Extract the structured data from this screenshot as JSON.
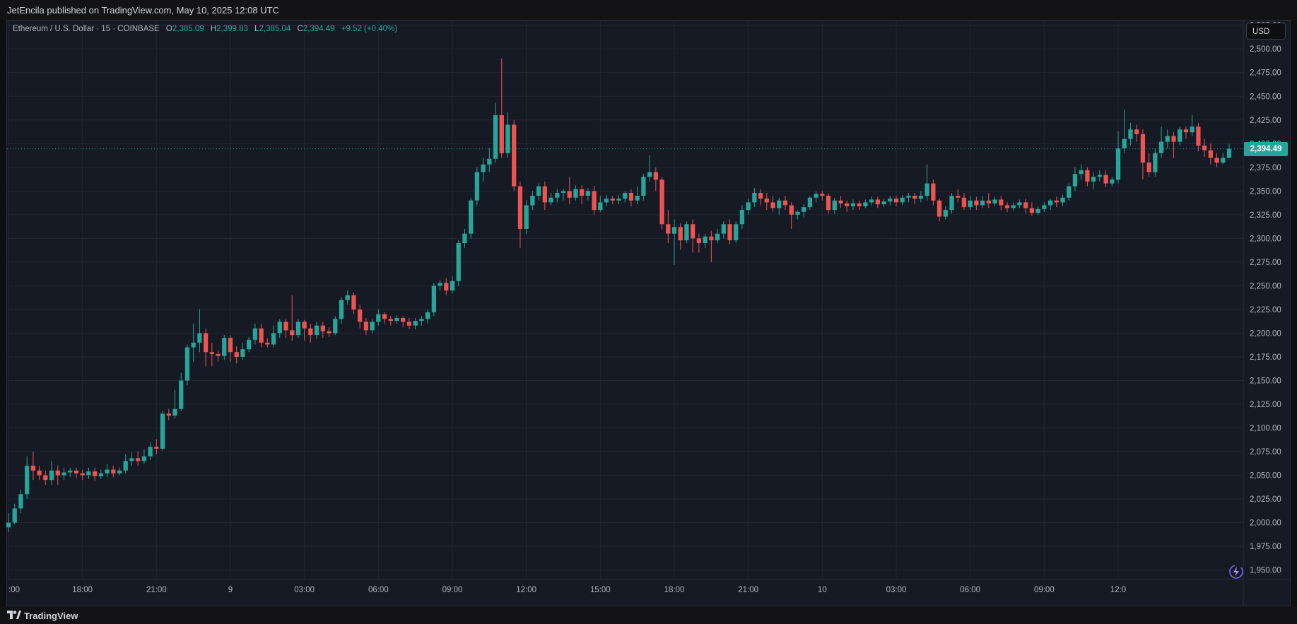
{
  "header": {
    "published_text": "JetEncila published on TradingView.com, May 10, 2025 12:08 UTC"
  },
  "legend": {
    "symbol": "Ethereum / U.S. Dollar · 15 · COINBASE",
    "open_label": "O",
    "open": "2,385.09",
    "high_label": "H",
    "high": "2,399.83",
    "low_label": "L",
    "low": "2,385.04",
    "close_label": "C",
    "close": "2,394.49",
    "change": "+9.52 (+0.40%)"
  },
  "axis": {
    "currency": "USD",
    "last_price_label": "2,394.49",
    "y_ticks": [
      "2,525.00",
      "2,500.00",
      "2,475.00",
      "2,450.00",
      "2,425.00",
      "2,400.00",
      "2,375.00",
      "2,350.00",
      "2,325.00",
      "2,300.00",
      "2,275.00",
      "2,250.00",
      "2,225.00",
      "2,200.00",
      "2,175.00",
      "2,150.00",
      "2,125.00",
      "2,100.00",
      "2,075.00",
      "2,050.00",
      "2,025.00",
      "2,000.00",
      "1,975.00",
      "1,950.00"
    ],
    "x_ticks": [
      ":00",
      "18:00",
      "21:00",
      "9",
      "03:00",
      "06:00",
      "09:00",
      "12:00",
      "15:00",
      "18:00",
      "21:00",
      "10",
      "03:00",
      "06:00",
      "09:00",
      "12:0"
    ]
  },
  "footer": {
    "brand": "TradingView"
  },
  "colors": {
    "up": "#26a69a",
    "down": "#ef5350",
    "background": "#161a25",
    "grid": "#232733"
  },
  "icons": {
    "logo": "tradingview-logo-icon",
    "flash": "lightning-flash-icon"
  },
  "chart_data": {
    "type": "candlestick",
    "symbol": "ETHUSD",
    "interval_minutes": 15,
    "ylim": [
      1940,
      2530
    ],
    "last_price": 2394.49,
    "candles": [
      [
        1995,
        2000,
        1990,
        2010
      ],
      [
        2000,
        2015,
        1998,
        2020
      ],
      [
        2015,
        2030,
        2010,
        2035
      ],
      [
        2030,
        2060,
        2025,
        2070
      ],
      [
        2060,
        2055,
        2045,
        2075
      ],
      [
        2055,
        2050,
        2045,
        2060
      ],
      [
        2050,
        2045,
        2040,
        2055
      ],
      [
        2045,
        2055,
        2040,
        2065
      ],
      [
        2055,
        2050,
        2040,
        2060
      ],
      [
        2050,
        2053,
        2045,
        2058
      ],
      [
        2053,
        2055,
        2048,
        2058
      ],
      [
        2055,
        2052,
        2047,
        2058
      ],
      [
        2052,
        2050,
        2045,
        2056
      ],
      [
        2050,
        2054,
        2046,
        2058
      ],
      [
        2054,
        2049,
        2044,
        2058
      ],
      [
        2049,
        2052,
        2046,
        2056
      ],
      [
        2052,
        2056,
        2048,
        2062
      ],
      [
        2056,
        2052,
        2048,
        2060
      ],
      [
        2052,
        2055,
        2050,
        2058
      ],
      [
        2055,
        2065,
        2052,
        2072
      ],
      [
        2065,
        2068,
        2060,
        2074
      ],
      [
        2068,
        2065,
        2060,
        2075
      ],
      [
        2065,
        2070,
        2062,
        2078
      ],
      [
        2070,
        2080,
        2066,
        2085
      ],
      [
        2080,
        2078,
        2072,
        2088
      ],
      [
        2078,
        2115,
        2076,
        2118
      ],
      [
        2115,
        2113,
        2108,
        2120
      ],
      [
        2113,
        2120,
        2110,
        2140
      ],
      [
        2120,
        2150,
        2118,
        2158
      ],
      [
        2150,
        2185,
        2145,
        2188
      ],
      [
        2185,
        2190,
        2170,
        2210
      ],
      [
        2190,
        2200,
        2180,
        2225
      ],
      [
        2200,
        2180,
        2165,
        2205
      ],
      [
        2180,
        2178,
        2165,
        2190
      ],
      [
        2178,
        2176,
        2170,
        2182
      ],
      [
        2176,
        2195,
        2172,
        2198
      ],
      [
        2195,
        2180,
        2170,
        2198
      ],
      [
        2180,
        2175,
        2168,
        2186
      ],
      [
        2175,
        2183,
        2172,
        2190
      ],
      [
        2183,
        2193,
        2180,
        2196
      ],
      [
        2193,
        2205,
        2188,
        2210
      ],
      [
        2205,
        2190,
        2185,
        2210
      ],
      [
        2190,
        2188,
        2185,
        2195
      ],
      [
        2188,
        2200,
        2185,
        2208
      ],
      [
        2200,
        2212,
        2195,
        2215
      ],
      [
        2212,
        2203,
        2195,
        2215
      ],
      [
        2203,
        2198,
        2192,
        2240
      ],
      [
        2198,
        2212,
        2195,
        2215
      ],
      [
        2212,
        2205,
        2192,
        2214
      ],
      [
        2205,
        2198,
        2190,
        2210
      ],
      [
        2198,
        2208,
        2194,
        2212
      ],
      [
        2208,
        2202,
        2195,
        2212
      ],
      [
        2202,
        2200,
        2196,
        2206
      ],
      [
        2200,
        2215,
        2198,
        2218
      ],
      [
        2215,
        2235,
        2210,
        2238
      ],
      [
        2235,
        2240,
        2230,
        2245
      ],
      [
        2240,
        2225,
        2220,
        2243
      ],
      [
        2225,
        2212,
        2205,
        2230
      ],
      [
        2212,
        2203,
        2198,
        2216
      ],
      [
        2203,
        2212,
        2200,
        2215
      ],
      [
        2212,
        2220,
        2208,
        2225
      ],
      [
        2220,
        2215,
        2210,
        2222
      ],
      [
        2215,
        2213,
        2208,
        2218
      ],
      [
        2213,
        2216,
        2210,
        2219
      ],
      [
        2216,
        2212,
        2206,
        2218
      ],
      [
        2212,
        2208,
        2204,
        2216
      ],
      [
        2208,
        2213,
        2204,
        2216
      ],
      [
        2213,
        2215,
        2208,
        2218
      ],
      [
        2215,
        2222,
        2210,
        2225
      ],
      [
        2222,
        2250,
        2218,
        2253
      ],
      [
        2250,
        2253,
        2245,
        2256
      ],
      [
        2253,
        2245,
        2240,
        2258
      ],
      [
        2245,
        2255,
        2242,
        2260
      ],
      [
        2255,
        2295,
        2250,
        2298
      ],
      [
        2295,
        2305,
        2290,
        2310
      ],
      [
        2305,
        2340,
        2300,
        2343
      ],
      [
        2340,
        2370,
        2335,
        2375
      ],
      [
        2370,
        2378,
        2360,
        2385
      ],
      [
        2378,
        2384,
        2370,
        2395
      ],
      [
        2384,
        2430,
        2380,
        2443
      ],
      [
        2430,
        2390,
        2385,
        2490
      ],
      [
        2390,
        2420,
        2385,
        2433
      ],
      [
        2420,
        2355,
        2350,
        2425
      ],
      [
        2355,
        2310,
        2290,
        2360
      ],
      [
        2310,
        2335,
        2305,
        2340
      ],
      [
        2335,
        2345,
        2330,
        2350
      ],
      [
        2345,
        2355,
        2340,
        2358
      ],
      [
        2355,
        2338,
        2330,
        2360
      ],
      [
        2338,
        2343,
        2335,
        2348
      ],
      [
        2343,
        2348,
        2338,
        2352
      ],
      [
        2348,
        2350,
        2340,
        2352
      ],
      [
        2350,
        2343,
        2336,
        2365
      ],
      [
        2343,
        2352,
        2340,
        2356
      ],
      [
        2352,
        2345,
        2336,
        2356
      ],
      [
        2345,
        2350,
        2340,
        2353
      ],
      [
        2350,
        2330,
        2325,
        2355
      ],
      [
        2330,
        2338,
        2328,
        2345
      ],
      [
        2338,
        2342,
        2334,
        2346
      ],
      [
        2342,
        2340,
        2336,
        2345
      ],
      [
        2340,
        2342,
        2336,
        2346
      ],
      [
        2342,
        2348,
        2338,
        2350
      ],
      [
        2348,
        2340,
        2334,
        2352
      ],
      [
        2340,
        2345,
        2336,
        2355
      ],
      [
        2345,
        2365,
        2340,
        2368
      ],
      [
        2365,
        2370,
        2360,
        2388
      ],
      [
        2370,
        2362,
        2350,
        2375
      ],
      [
        2362,
        2315,
        2310,
        2365
      ],
      [
        2315,
        2305,
        2295,
        2330
      ],
      [
        2305,
        2312,
        2272,
        2320
      ],
      [
        2312,
        2298,
        2288,
        2316
      ],
      [
        2298,
        2315,
        2295,
        2318
      ],
      [
        2315,
        2300,
        2285,
        2320
      ],
      [
        2300,
        2295,
        2285,
        2305
      ],
      [
        2295,
        2302,
        2290,
        2305
      ],
      [
        2302,
        2298,
        2275,
        2308
      ],
      [
        2298,
        2305,
        2295,
        2310
      ],
      [
        2305,
        2315,
        2300,
        2318
      ],
      [
        2315,
        2298,
        2294,
        2320
      ],
      [
        2298,
        2315,
        2295,
        2318
      ],
      [
        2315,
        2330,
        2310,
        2335
      ],
      [
        2330,
        2338,
        2325,
        2342
      ],
      [
        2338,
        2348,
        2333,
        2353
      ],
      [
        2348,
        2342,
        2335,
        2352
      ],
      [
        2342,
        2338,
        2330,
        2348
      ],
      [
        2338,
        2332,
        2328,
        2345
      ],
      [
        2332,
        2340,
        2325,
        2343
      ],
      [
        2340,
        2335,
        2330,
        2345
      ],
      [
        2335,
        2325,
        2310,
        2338
      ],
      [
        2325,
        2328,
        2320,
        2330
      ],
      [
        2328,
        2333,
        2322,
        2336
      ],
      [
        2333,
        2343,
        2330,
        2345
      ],
      [
        2343,
        2347,
        2338,
        2350
      ],
      [
        2347,
        2345,
        2340,
        2350
      ],
      [
        2345,
        2330,
        2326,
        2348
      ],
      [
        2330,
        2340,
        2326,
        2343
      ],
      [
        2340,
        2337,
        2332,
        2345
      ],
      [
        2337,
        2334,
        2328,
        2340
      ],
      [
        2334,
        2337,
        2330,
        2341
      ],
      [
        2337,
        2334,
        2330,
        2340
      ],
      [
        2334,
        2338,
        2332,
        2341
      ],
      [
        2338,
        2341,
        2335,
        2344
      ],
      [
        2341,
        2336,
        2332,
        2344
      ],
      [
        2336,
        2339,
        2333,
        2342
      ],
      [
        2339,
        2342,
        2335,
        2345
      ],
      [
        2342,
        2338,
        2334,
        2345
      ],
      [
        2338,
        2343,
        2335,
        2346
      ],
      [
        2343,
        2345,
        2338,
        2348
      ],
      [
        2345,
        2342,
        2336,
        2348
      ],
      [
        2342,
        2345,
        2338,
        2350
      ],
      [
        2345,
        2358,
        2340,
        2378
      ],
      [
        2358,
        2340,
        2335,
        2362
      ],
      [
        2340,
        2323,
        2318,
        2342
      ],
      [
        2323,
        2330,
        2320,
        2334
      ],
      [
        2330,
        2345,
        2326,
        2348
      ],
      [
        2345,
        2343,
        2338,
        2352
      ],
      [
        2343,
        2333,
        2330,
        2348
      ],
      [
        2333,
        2340,
        2330,
        2345
      ],
      [
        2340,
        2335,
        2330,
        2344
      ],
      [
        2335,
        2340,
        2332,
        2345
      ],
      [
        2340,
        2337,
        2332,
        2348
      ],
      [
        2337,
        2341,
        2334,
        2344
      ],
      [
        2341,
        2335,
        2330,
        2345
      ],
      [
        2335,
        2332,
        2328,
        2338
      ],
      [
        2332,
        2335,
        2329,
        2338
      ],
      [
        2335,
        2338,
        2332,
        2341
      ],
      [
        2338,
        2332,
        2326,
        2342
      ],
      [
        2332,
        2327,
        2324,
        2338
      ],
      [
        2327,
        2331,
        2325,
        2334
      ],
      [
        2331,
        2335,
        2328,
        2338
      ],
      [
        2335,
        2340,
        2330,
        2342
      ],
      [
        2340,
        2338,
        2333,
        2344
      ],
      [
        2338,
        2343,
        2334,
        2346
      ],
      [
        2343,
        2355,
        2340,
        2358
      ],
      [
        2355,
        2368,
        2350,
        2375
      ],
      [
        2368,
        2372,
        2362,
        2378
      ],
      [
        2372,
        2360,
        2355,
        2375
      ],
      [
        2360,
        2365,
        2352,
        2370
      ],
      [
        2365,
        2367,
        2360,
        2372
      ],
      [
        2367,
        2358,
        2354,
        2372
      ],
      [
        2358,
        2362,
        2355,
        2365
      ],
      [
        2362,
        2395,
        2358,
        2413
      ],
      [
        2395,
        2405,
        2390,
        2436
      ],
      [
        2405,
        2415,
        2398,
        2422
      ],
      [
        2415,
        2410,
        2402,
        2420
      ],
      [
        2410,
        2380,
        2362,
        2415
      ],
      [
        2380,
        2370,
        2365,
        2390
      ],
      [
        2370,
        2390,
        2365,
        2395
      ],
      [
        2390,
        2402,
        2385,
        2418
      ],
      [
        2402,
        2408,
        2395,
        2415
      ],
      [
        2408,
        2402,
        2385,
        2412
      ],
      [
        2402,
        2415,
        2398,
        2418
      ],
      [
        2415,
        2412,
        2405,
        2418
      ],
      [
        2412,
        2418,
        2408,
        2430
      ],
      [
        2418,
        2398,
        2392,
        2422
      ],
      [
        2398,
        2393,
        2386,
        2405
      ],
      [
        2393,
        2385,
        2378,
        2400
      ],
      [
        2385,
        2380,
        2375,
        2390
      ],
      [
        2380,
        2385,
        2378,
        2390
      ],
      [
        2385,
        2394.49,
        2385.04,
        2399.83
      ]
    ]
  }
}
